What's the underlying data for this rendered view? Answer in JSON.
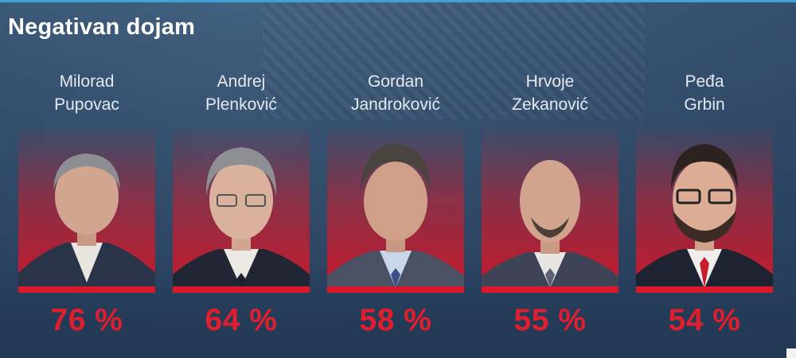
{
  "title": "Negativan dojam",
  "people": [
    {
      "first": "Milorad",
      "last": "Pupovac",
      "value": "76 %"
    },
    {
      "first": "Andrej",
      "last": "Plenković",
      "value": "64 %"
    },
    {
      "first": "Gordan",
      "last": "Jandroković",
      "value": "58 %"
    },
    {
      "first": "Hrvoje",
      "last": "Zekanović",
      "value": "55 %"
    },
    {
      "first": "Peđa",
      "last": "Grbin",
      "value": "54 %"
    }
  ],
  "colors": {
    "background": "#2e4866",
    "accent_red": "#d9182b",
    "percent_text": "#e01f2e",
    "title_text": "#ffffff"
  }
}
